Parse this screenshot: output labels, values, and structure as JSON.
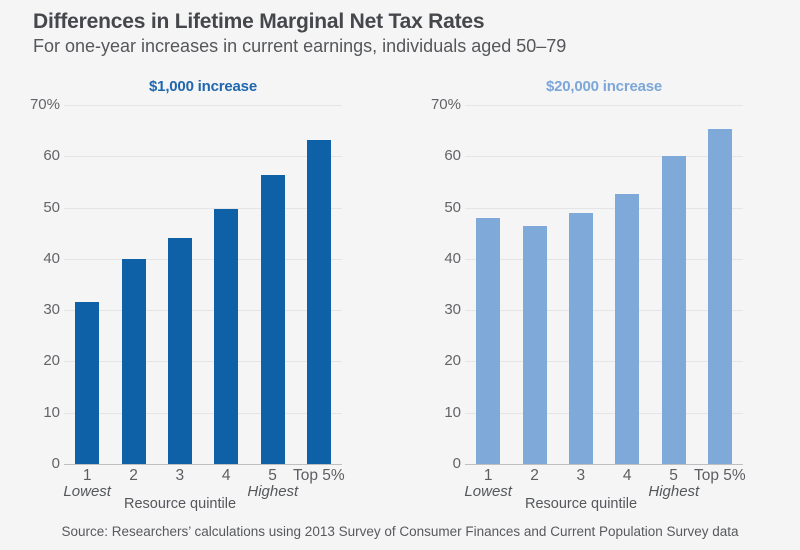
{
  "title": "Differences in Lifetime Marginal Net Tax Rates",
  "subtitle": "For one-year increases in current earnings, individuals aged 50–79",
  "source": "Source: Researchers’ calculations using 2013 Survey of Consumer Finances and Current Population Survey data",
  "colors": {
    "background": "#f5f5f6",
    "title_text": "#45474a",
    "subtitle_text": "#55575a",
    "axis_text": "#636467",
    "gridline": "#e5e4e6",
    "baseline": "#bfbfc2",
    "bar_dark_blue": "#0e61a7",
    "bar_light_blue": "#7fa9d9",
    "header_dark_blue": "#2067ae",
    "header_light_blue": "#7da7d7"
  },
  "chart_data": [
    {
      "type": "bar",
      "title": "$1,000 increase",
      "categories": [
        "1",
        "2",
        "3",
        "4",
        "5",
        "Top 5%"
      ],
      "values": [
        31.5,
        40.0,
        44.0,
        49.8,
        56.4,
        63.1
      ],
      "xlabel": "Resource quintile",
      "x_sub_label_low": "Lowest",
      "x_sub_label_high": "Highest",
      "ylim": [
        0,
        70
      ],
      "yticks": [
        "0",
        "10",
        "20",
        "30",
        "40",
        "50",
        "60",
        "70%"
      ],
      "ytick_interval": 10,
      "grid": true,
      "legend": false,
      "bar_color": "#0e61a7",
      "title_color": "#2067ae"
    },
    {
      "type": "bar",
      "title": "$20,000 increase",
      "categories": [
        "1",
        "2",
        "3",
        "4",
        "5",
        "Top 5%"
      ],
      "values": [
        48.0,
        46.5,
        49.0,
        52.6,
        60.0,
        65.4
      ],
      "xlabel": "Resource quintile",
      "x_sub_label_low": "Lowest",
      "x_sub_label_high": "Highest",
      "ylim": [
        0,
        70
      ],
      "yticks": [
        "0",
        "10",
        "20",
        "30",
        "40",
        "50",
        "60",
        "70%"
      ],
      "ytick_interval": 10,
      "grid": true,
      "legend": false,
      "bar_color": "#7fa9d9",
      "title_color": "#7da7d7"
    }
  ]
}
